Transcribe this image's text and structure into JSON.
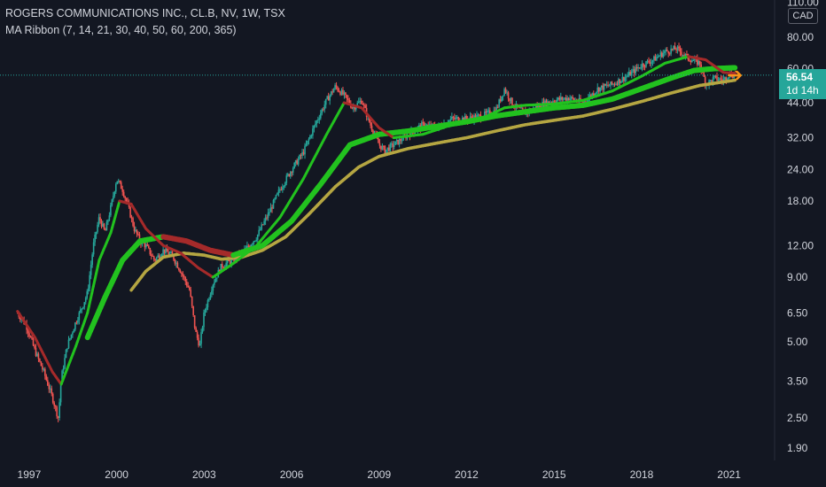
{
  "legend": {
    "title": "ROGERS COMMUNICATIONS INC., CL.B, NV, 1W, TSX",
    "indicator": "MA Ribbon (7, 14, 21, 30, 40, 50, 60, 200, 365)"
  },
  "currency_label": "CAD",
  "current_price": {
    "value": "56.54",
    "countdown": "1d 14h"
  },
  "colors": {
    "background": "#131722",
    "up": "#26a69a",
    "down": "#ef5350",
    "ma_fast_up": "#22c21f",
    "ma_fast_down": "#a52a2a",
    "ma_long": "#b5a642",
    "price_line": "#26a69a",
    "arrow": "#f7931a"
  },
  "icons": {
    "arrow": "left-arrow-icon"
  },
  "chart_data": {
    "type": "line",
    "title": "ROGERS COMMUNICATIONS INC., CL.B, NV, 1W, TSX",
    "y_scale": "log",
    "ylim": [
      1.7,
      112
    ],
    "y_ticks": [
      1.9,
      2.5,
      3.5,
      5.0,
      6.5,
      9.0,
      12.0,
      18.0,
      24.0,
      32.0,
      44.0,
      60.0,
      80.0,
      110.0
    ],
    "y_tick_labels": [
      "1.90",
      "2.50",
      "3.50",
      "5.00",
      "6.50",
      "9.00",
      "12.00",
      "18.00",
      "24.00",
      "32.00",
      "44.00",
      "60.00",
      "80.00",
      "110.00"
    ],
    "xlim": [
      1996.0,
      2022.5
    ],
    "x_ticks": [
      1997,
      2000,
      2003,
      2006,
      2009,
      2012,
      2015,
      2018,
      2021
    ],
    "x_tick_labels": [
      "1997",
      "2000",
      "2003",
      "2006",
      "2009",
      "2012",
      "2015",
      "2018",
      "2021"
    ],
    "grid": false,
    "current_price": 56.54,
    "series": [
      {
        "x": [
          1996.6,
          1996.9,
          1997.2,
          1997.5,
          1997.8,
          1998.0,
          1998.1,
          1998.3,
          1998.6,
          1998.8,
          1999.0,
          1999.2,
          1999.4,
          1999.6,
          1999.8,
          2000.0,
          2000.2,
          2000.4,
          2000.6,
          2000.8,
          2001.0,
          2001.3,
          2001.6,
          2001.9,
          2002.2,
          2002.5,
          2002.7,
          2002.85,
          2003.0,
          2003.3,
          2003.6,
          2004.0,
          2004.4,
          2004.8,
          2005.2,
          2005.6,
          2006.0,
          2006.4,
          2006.8,
          2007.2,
          2007.5,
          2007.8,
          2008.1,
          2008.4,
          2008.7,
          2009.0,
          2009.2,
          2009.5,
          2010.0,
          2010.5,
          2011.0,
          2011.5,
          2012.0,
          2012.5,
          2013.0,
          2013.3,
          2013.6,
          2014.0,
          2014.5,
          2015.0,
          2015.5,
          2016.0,
          2016.5,
          2017.0,
          2017.5,
          2018.0,
          2018.4,
          2018.8,
          2019.2,
          2019.6,
          2020.0,
          2020.2,
          2020.5,
          2020.8,
          2021.0,
          2021.2
        ],
        "values": [
          6.5,
          5.8,
          4.6,
          3.8,
          3.0,
          2.5,
          3.6,
          4.8,
          6.0,
          6.8,
          7.8,
          12.0,
          15.5,
          13.5,
          17.0,
          22.0,
          20.0,
          17.0,
          14.0,
          12.5,
          12.0,
          10.5,
          11.5,
          11.0,
          9.5,
          8.0,
          5.5,
          4.8,
          6.5,
          8.5,
          10.0,
          10.5,
          11.5,
          13.0,
          16.0,
          20.0,
          24.0,
          28.0,
          36.0,
          45.0,
          51.0,
          47.0,
          42.0,
          45.0,
          36.0,
          30.0,
          28.5,
          30.0,
          33.0,
          36.0,
          35.0,
          38.0,
          38.0,
          39.0,
          41.0,
          50.0,
          43.0,
          40.0,
          43.0,
          45.0,
          46.0,
          44.0,
          50.0,
          52.0,
          56.0,
          62.0,
          65.0,
          70.0,
          72.0,
          66.0,
          63.0,
          52.0,
          55.0,
          54.0,
          57.0,
          56.54
        ]
      },
      {
        "x": [
          1996.6,
          1997.2,
          1997.8,
          1998.1,
          1998.6,
          1999.0,
          1999.4,
          1999.8,
          2000.1,
          2000.5,
          2001.0,
          2001.6,
          2002.2,
          2002.8,
          2003.3,
          2004.0,
          2004.8,
          2005.6,
          2006.4,
          2007.2,
          2007.8,
          2008.4,
          2009.0,
          2009.5,
          2010.5,
          2011.5,
          2012.5,
          2013.3,
          2014.0,
          2015.0,
          2016.0,
          2017.0,
          2018.0,
          2018.8,
          2019.6,
          2020.2,
          2020.8,
          2021.2
        ],
        "values": [
          6.6,
          5.2,
          3.8,
          3.4,
          4.8,
          6.5,
          10.5,
          13.5,
          18.0,
          17.5,
          14.0,
          12.0,
          11.2,
          9.8,
          9.0,
          10.2,
          12.0,
          15.5,
          22.0,
          33.0,
          44.0,
          42.0,
          35.0,
          32.0,
          33.0,
          36.0,
          38.0,
          42.0,
          43.0,
          43.5,
          45.0,
          49.0,
          56.0,
          63.0,
          67.0,
          65.0,
          58.0,
          57.5
        ]
      },
      {
        "x": [
          1999.0,
          1999.6,
          2000.2,
          2000.8,
          2001.6,
          2002.4,
          2003.2,
          2004.0,
          2005.0,
          2006.0,
          2007.0,
          2008.0,
          2009.0,
          2010.0,
          2011.0,
          2012.0,
          2013.0,
          2014.0,
          2015.0,
          2016.0,
          2017.0,
          2018.0,
          2019.0,
          2019.8,
          2020.5,
          2021.2
        ],
        "values": [
          5.2,
          7.5,
          10.5,
          12.5,
          13.0,
          12.5,
          11.5,
          11.0,
          12.0,
          15.0,
          21.0,
          30.0,
          33.0,
          34.0,
          35.5,
          37.0,
          39.0,
          40.5,
          42.0,
          43.0,
          45.5,
          50.0,
          55.0,
          59.0,
          60.0,
          60.5
        ]
      },
      {
        "x": [
          2000.5,
          2001.0,
          2001.6,
          2002.3,
          2003.0,
          2003.6,
          2004.3,
          2005.0,
          2005.8,
          2006.6,
          2007.5,
          2008.3,
          2009.0,
          2010.0,
          2011.0,
          2012.0,
          2013.0,
          2014.0,
          2015.0,
          2016.0,
          2017.0,
          2018.0,
          2019.0,
          2020.0,
          2021.2
        ],
        "values": [
          8.0,
          9.5,
          10.8,
          11.2,
          11.0,
          10.6,
          10.8,
          11.5,
          13.0,
          16.0,
          20.5,
          24.5,
          27.0,
          29.0,
          30.5,
          32.0,
          34.0,
          36.0,
          37.5,
          39.0,
          41.5,
          44.5,
          48.0,
          51.5,
          54.0
        ]
      }
    ]
  }
}
